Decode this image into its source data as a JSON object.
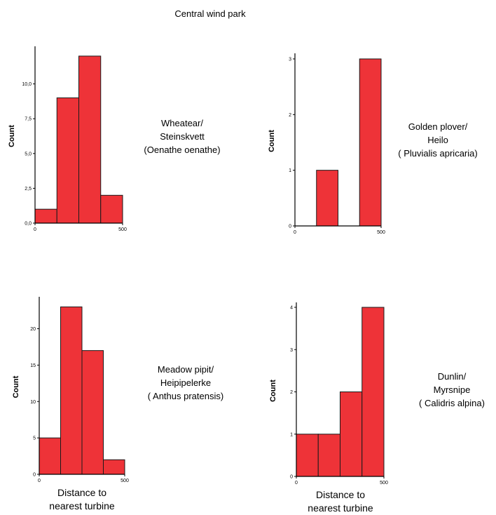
{
  "page": {
    "title": "Central wind park"
  },
  "colors": {
    "bar_fill": "#ee3338",
    "bar_stroke": "#1a1a1a",
    "axis": "#000000",
    "background": "#ffffff"
  },
  "chart_data": [
    {
      "type": "bar",
      "species": {
        "line1": "Wheatear/",
        "line2": "Steinskvett",
        "line3": "(Oenathe oenathe)"
      },
      "xlabel": "",
      "ylabel": "Count",
      "bin_edges": [
        0,
        125,
        250,
        375,
        500
      ],
      "values": [
        1,
        9,
        12,
        2
      ],
      "xlim": [
        0,
        500
      ],
      "ylim": [
        0,
        12.5
      ],
      "xticks": [
        0,
        500
      ],
      "xtick_labels": [
        "0",
        "500"
      ],
      "yticks": [
        0,
        2.5,
        5,
        7.5,
        10
      ],
      "ytick_labels": [
        "0,0",
        "2,5",
        "5,0",
        "7,5",
        "10,0"
      ],
      "grid": false,
      "legend": "none"
    },
    {
      "type": "bar",
      "species": {
        "line1": "Golden plover/",
        "line2": "Heilo",
        "line3": "( Pluvialis apricaria)"
      },
      "xlabel": "",
      "ylabel": "Count",
      "bin_edges": [
        0,
        125,
        250,
        375,
        500
      ],
      "values": [
        0,
        1,
        0,
        3
      ],
      "xlim": [
        0,
        500
      ],
      "ylim": [
        0,
        3.05
      ],
      "xticks": [
        0,
        500
      ],
      "xtick_labels": [
        "0",
        "500"
      ],
      "yticks": [
        0,
        1,
        2,
        3
      ],
      "ytick_labels": [
        "0",
        "1",
        "2",
        "3"
      ],
      "grid": false,
      "legend": "none"
    },
    {
      "type": "bar",
      "species": {
        "line1": "Meadow pipit/",
        "line2": "Heipipelerke",
        "line3": "( Anthus pratensis)"
      },
      "xlabel": "Distance to nearest turbine",
      "ylabel": "Count",
      "bin_edges": [
        0,
        125,
        250,
        375,
        500
      ],
      "values": [
        5,
        23,
        17,
        2
      ],
      "xlim": [
        0,
        500
      ],
      "ylim": [
        0,
        24
      ],
      "xticks": [
        0,
        500
      ],
      "xtick_labels": [
        "0",
        "500"
      ],
      "yticks": [
        0,
        5,
        10,
        15,
        20
      ],
      "ytick_labels": [
        "0",
        "5",
        "10",
        "15",
        "20"
      ],
      "grid": false,
      "legend": "none"
    },
    {
      "type": "bar",
      "species": {
        "line1": "Dunlin/",
        "line2": "Myrsnipe",
        "line3": "( Calidris alpina)"
      },
      "xlabel": "Distance to nearest turbine",
      "ylabel": "Count",
      "bin_edges": [
        0,
        125,
        250,
        375,
        500
      ],
      "values": [
        1,
        1,
        2,
        4
      ],
      "xlim": [
        0,
        500
      ],
      "ylim": [
        0,
        4.05
      ],
      "xticks": [
        0,
        500
      ],
      "xtick_labels": [
        "0",
        "500"
      ],
      "yticks": [
        0,
        1,
        2,
        3,
        4
      ],
      "ytick_labels": [
        "0",
        "1",
        "2",
        "3",
        "4"
      ],
      "grid": false,
      "legend": "none"
    }
  ]
}
